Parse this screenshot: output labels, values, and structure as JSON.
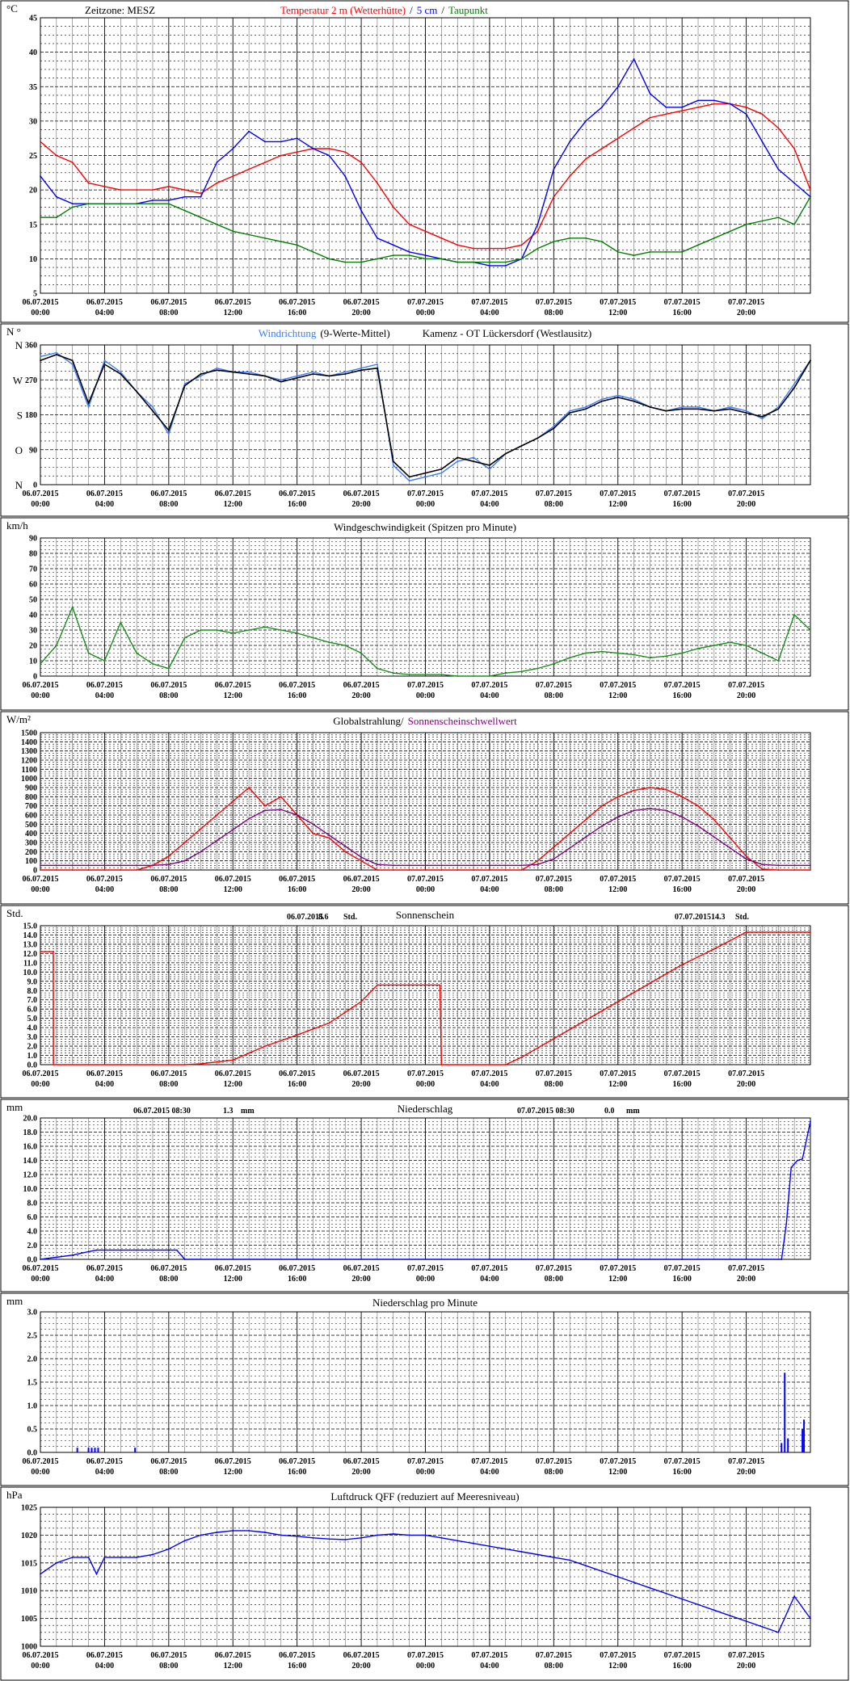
{
  "x_labels": [
    [
      "06.07.2015",
      "00:00"
    ],
    [
      "06.07.2015",
      "04:00"
    ],
    [
      "06.07.2015",
      "08:00"
    ],
    [
      "06.07.2015",
      "12:00"
    ],
    [
      "06.07.2015",
      "16:00"
    ],
    [
      "06.07.2015",
      "20:00"
    ],
    [
      "07.07.2015",
      "00:00"
    ],
    [
      "07.07.2015",
      "04:00"
    ],
    [
      "07.07.2015",
      "08:00"
    ],
    [
      "07.07.2015",
      "12:00"
    ],
    [
      "07.07.2015",
      "16:00"
    ],
    [
      "07.07.2015",
      "20:00"
    ]
  ],
  "colors": {
    "red": "#ff0000",
    "blue": "#0000ff",
    "green": "#008000",
    "lightblue": "#3a7cff",
    "black": "#000000",
    "purple": "#800080",
    "darkgreen": "#1a8f1a"
  },
  "chart_data": [
    {
      "id": "temp",
      "type": "line",
      "unit": "°C",
      "title_parts": [
        {
          "text": "Zeitzone: MESZ",
          "color": "#000000"
        },
        {
          "text": "Temperatur 2 m (Wetterhütte)",
          "color": "#ff0000"
        },
        {
          "text": "/",
          "color": "#000000"
        },
        {
          "text": "5 cm",
          "color": "#0000ff"
        },
        {
          "text": "/",
          "color": "#000000"
        },
        {
          "text": "Taupunkt",
          "color": "#008000"
        }
      ],
      "ylim": [
        5,
        45
      ],
      "yticks": [
        "5",
        "10",
        "15",
        "20",
        "25",
        "30",
        "35",
        "40",
        "45"
      ],
      "x": [
        0,
        1,
        2,
        3,
        4,
        5,
        6,
        7,
        8,
        9,
        10,
        11,
        12,
        13,
        14,
        15,
        16,
        17,
        18,
        19,
        20,
        21,
        22,
        23,
        24,
        25,
        26,
        27,
        28,
        29,
        30,
        31,
        32,
        33,
        34,
        35,
        36,
        37,
        38,
        39,
        40,
        41,
        42,
        43,
        44,
        45,
        46,
        47,
        48
      ],
      "series": [
        {
          "name": "Temperatur 2 m (Wetterhütte)",
          "color": "#ff0000",
          "values": [
            27,
            25,
            24,
            21,
            20.5,
            20,
            20,
            20,
            20.5,
            20,
            19.5,
            21,
            22,
            23,
            24,
            25,
            25.5,
            26,
            26,
            25.5,
            24,
            21,
            17.5,
            15,
            14,
            13,
            12,
            11.5,
            11.5,
            11.5,
            12,
            14,
            19,
            22,
            24.5,
            26,
            27.5,
            29,
            30.5,
            31,
            31.5,
            32,
            32.5,
            32.5,
            32,
            31,
            29,
            26,
            20
          ]
        },
        {
          "name": "5 cm",
          "color": "#0000ff",
          "values": [
            22,
            19,
            18,
            18,
            18,
            18,
            18,
            18.5,
            18.5,
            19,
            19,
            24,
            26,
            28.5,
            27,
            27,
            27.5,
            26,
            25,
            22,
            17,
            13,
            12,
            11,
            10.5,
            10,
            9.5,
            9.5,
            9,
            9,
            10,
            15,
            23,
            27,
            30,
            32,
            35,
            39,
            34,
            32,
            32,
            33,
            33,
            32.5,
            31,
            27,
            23,
            21,
            19
          ]
        },
        {
          "name": "Taupunkt",
          "color": "#008000",
          "values": [
            16,
            16,
            17.5,
            18,
            18,
            18,
            18,
            18,
            18,
            17,
            16,
            15,
            14,
            13.5,
            13,
            12.5,
            12,
            11,
            10,
            9.5,
            9.5,
            10,
            10.5,
            10.5,
            10,
            10,
            9.5,
            9.5,
            9.5,
            9.5,
            10,
            11.5,
            12.5,
            13,
            13,
            12.5,
            11,
            10.5,
            11,
            11,
            11,
            12,
            13,
            14,
            15,
            15.5,
            16,
            15,
            19
          ]
        }
      ]
    },
    {
      "id": "winddir",
      "type": "line",
      "unit": "N °",
      "title_parts": [
        {
          "text": "Windrichtung",
          "color": "#3a7cff"
        },
        {
          "text": "(9-Werte-Mittel)",
          "color": "#000000"
        },
        {
          "text": "Kamenz - OT Lückersdorf (Westlausitz)",
          "color": "#000000"
        }
      ],
      "ylim": [
        0,
        360
      ],
      "yticks": [
        "0",
        "90",
        "180",
        "270",
        "360"
      ],
      "ydir": [
        "N",
        "O",
        "S",
        "W",
        "N"
      ],
      "x": [
        0,
        1,
        2,
        3,
        4,
        5,
        6,
        7,
        8,
        9,
        10,
        11,
        12,
        13,
        14,
        15,
        16,
        17,
        18,
        19,
        20,
        21,
        22,
        23,
        24,
        25,
        26,
        27,
        28,
        29,
        30,
        31,
        32,
        33,
        34,
        35,
        36,
        37,
        38,
        39,
        40,
        41,
        42,
        43,
        44,
        45,
        46,
        47,
        48
      ],
      "series": [
        {
          "name": "Windrichtung",
          "color": "#3a7cff",
          "values": [
            330,
            340,
            310,
            200,
            320,
            290,
            240,
            200,
            130,
            260,
            280,
            300,
            290,
            290,
            280,
            270,
            280,
            290,
            280,
            290,
            300,
            310,
            50,
            10,
            20,
            30,
            60,
            70,
            40,
            80,
            100,
            120,
            150,
            190,
            200,
            220,
            230,
            220,
            200,
            190,
            200,
            200,
            190,
            200,
            190,
            170,
            200,
            260,
            320
          ]
        },
        {
          "name": "9-Werte-Mittel",
          "color": "#000000",
          "values": [
            320,
            335,
            320,
            210,
            310,
            285,
            240,
            190,
            140,
            255,
            285,
            295,
            290,
            285,
            280,
            265,
            275,
            285,
            280,
            285,
            295,
            300,
            60,
            20,
            30,
            40,
            70,
            60,
            50,
            80,
            100,
            120,
            145,
            185,
            195,
            215,
            225,
            215,
            200,
            190,
            195,
            195,
            190,
            195,
            185,
            175,
            195,
            250,
            320
          ]
        }
      ]
    },
    {
      "id": "windspeed",
      "type": "line",
      "unit": "km/h",
      "title_parts": [
        {
          "text": "Windgeschwindigkeit (Spitzen pro Minute)",
          "color": "#000000"
        }
      ],
      "ylim": [
        0,
        90
      ],
      "yticks": [
        "0",
        "10",
        "20",
        "30",
        "40",
        "50",
        "60",
        "70",
        "80",
        "90"
      ],
      "x": [
        0,
        1,
        2,
        3,
        4,
        5,
        6,
        7,
        8,
        9,
        10,
        11,
        12,
        13,
        14,
        15,
        16,
        17,
        18,
        19,
        20,
        21,
        22,
        23,
        24,
        25,
        26,
        27,
        28,
        29,
        30,
        31,
        32,
        33,
        34,
        35,
        36,
        37,
        38,
        39,
        40,
        41,
        42,
        43,
        44,
        45,
        46,
        47,
        48
      ],
      "series": [
        {
          "name": "Windgeschwindigkeit",
          "color": "#1a8f1a",
          "values": [
            8,
            20,
            45,
            15,
            10,
            35,
            15,
            8,
            5,
            25,
            30,
            30,
            28,
            30,
            32,
            30,
            28,
            25,
            22,
            20,
            15,
            5,
            2,
            1,
            1,
            1,
            0,
            0,
            0,
            2,
            3,
            5,
            8,
            12,
            15,
            16,
            15,
            14,
            12,
            13,
            15,
            18,
            20,
            22,
            20,
            15,
            10,
            40,
            30
          ]
        }
      ]
    },
    {
      "id": "radiation",
      "type": "line",
      "unit": "W/m²",
      "title_parts": [
        {
          "text": "Globalstrahlung/",
          "color": "#000000"
        },
        {
          "text": "Sonnenscheinschwellwert",
          "color": "#800080"
        }
      ],
      "ylim": [
        0,
        1500
      ],
      "yticks": [
        "0",
        "100",
        "200",
        "300",
        "400",
        "500",
        "600",
        "700",
        "800",
        "900",
        "1000",
        "1100",
        "1200",
        "1300",
        "1400",
        "1500"
      ],
      "x": [
        0,
        1,
        2,
        3,
        4,
        5,
        6,
        7,
        8,
        9,
        10,
        11,
        12,
        13,
        14,
        15,
        16,
        17,
        18,
        19,
        20,
        21,
        22,
        23,
        24,
        25,
        26,
        27,
        28,
        29,
        30,
        31,
        32,
        33,
        34,
        35,
        36,
        37,
        38,
        39,
        40,
        41,
        42,
        43,
        44,
        45,
        46,
        47,
        48
      ],
      "series": [
        {
          "name": "Globalstrahlung",
          "color": "#ff0000",
          "values": [
            0,
            0,
            0,
            0,
            0,
            0,
            0,
            50,
            150,
            300,
            450,
            600,
            750,
            900,
            700,
            800,
            600,
            400,
            350,
            200,
            100,
            0,
            0,
            0,
            0,
            0,
            0,
            0,
            0,
            0,
            0,
            100,
            250,
            400,
            550,
            700,
            800,
            870,
            900,
            880,
            800,
            700,
            550,
            350,
            150,
            10,
            0,
            0,
            0
          ]
        },
        {
          "name": "Sonnenscheinschwellwert",
          "color": "#800080",
          "values": [
            50,
            50,
            50,
            50,
            50,
            50,
            50,
            50,
            60,
            100,
            200,
            320,
            440,
            560,
            650,
            660,
            600,
            500,
            380,
            260,
            140,
            60,
            50,
            50,
            50,
            50,
            50,
            50,
            50,
            50,
            50,
            60,
            120,
            240,
            360,
            480,
            580,
            650,
            670,
            650,
            580,
            480,
            360,
            240,
            120,
            60,
            50,
            50,
            50
          ]
        }
      ]
    },
    {
      "id": "sunshine",
      "type": "line",
      "unit": "Std.",
      "title_parts": [
        {
          "text": "Sonnenschein",
          "color": "#000000"
        }
      ],
      "stats": [
        {
          "date": "06.07.2015",
          "value": "8.6",
          "unit": "Std."
        },
        {
          "date": "07.07.2015",
          "value": "14.3",
          "unit": "Std."
        }
      ],
      "ylim": [
        0,
        15
      ],
      "yticks": [
        "0.0",
        "1.0",
        "2.0",
        "3.0",
        "4.0",
        "5.0",
        "6.0",
        "7.0",
        "8.0",
        "9.0",
        "10.0",
        "11.0",
        "12.0",
        "13.0",
        "14.0",
        "15.0"
      ],
      "x": [
        0,
        0.8,
        0.81,
        9,
        10,
        12,
        14,
        16,
        18,
        20,
        21,
        23,
        24,
        24.9,
        25,
        29,
        30,
        32,
        34,
        36,
        38,
        40,
        42,
        44,
        46,
        48
      ],
      "series": [
        {
          "name": "Sonnenschein",
          "color": "#ff0000",
          "values": [
            12.2,
            12.2,
            0,
            0,
            0.1,
            0.5,
            2.0,
            3.2,
            4.5,
            6.8,
            8.6,
            8.6,
            8.6,
            8.6,
            0,
            0,
            0.8,
            2.8,
            4.8,
            6.8,
            8.8,
            10.8,
            12.5,
            14.3,
            14.3,
            14.3
          ]
        }
      ]
    },
    {
      "id": "precip",
      "type": "line",
      "unit": "mm",
      "title_parts": [
        {
          "text": "Niederschlag",
          "color": "#000000"
        }
      ],
      "stats": [
        {
          "date": "06.07.2015 08:30",
          "value": "1.3",
          "unit": "mm"
        },
        {
          "date": "07.07.2015 08:30",
          "value": "0.0",
          "unit": "mm"
        }
      ],
      "ylim": [
        0,
        20
      ],
      "yticks": [
        "0.0",
        "2.0",
        "4.0",
        "6.0",
        "8.0",
        "10.0",
        "12.0",
        "14.0",
        "16.0",
        "18.0",
        "20.0"
      ],
      "x": [
        0,
        2,
        3,
        3.5,
        8.5,
        9,
        40,
        46.2,
        46.5,
        46.8,
        47.2,
        47.5,
        48
      ],
      "series": [
        {
          "name": "Niederschlag",
          "color": "#0000ff",
          "values": [
            0,
            0.6,
            1.1,
            1.3,
            1.3,
            0,
            0,
            0,
            5,
            13,
            14,
            14.2,
            19.5
          ]
        }
      ]
    },
    {
      "id": "precipmin",
      "type": "bar",
      "unit": "mm",
      "title_parts": [
        {
          "text": "Niederschlag pro Minute",
          "color": "#000000"
        }
      ],
      "ylim": [
        0,
        3
      ],
      "yticks": [
        "0.0",
        "0.5",
        "1.0",
        "1.5",
        "2.0",
        "2.5",
        "3.0"
      ],
      "x": [
        2.3,
        3.0,
        3.2,
        3.4,
        3.6,
        5.9,
        46.2,
        46.4,
        46.6,
        47.5,
        47.6
      ],
      "series": [
        {
          "name": "Niederschlag pro Minute",
          "color": "#0000ff",
          "values": [
            0.1,
            0.1,
            0.1,
            0.1,
            0.1,
            0.1,
            0.2,
            1.7,
            0.3,
            0.5,
            0.7
          ]
        }
      ]
    },
    {
      "id": "pressure",
      "type": "line",
      "unit": "hPa",
      "title_parts": [
        {
          "text": "Luftdruck QFF (reduziert auf Meeresniveau)",
          "color": "#000000"
        }
      ],
      "ylim": [
        1000,
        1025
      ],
      "yticks": [
        "1000",
        "1005",
        "1010",
        "1015",
        "1020",
        "1025"
      ],
      "x": [
        0,
        1,
        2,
        3,
        3.5,
        4,
        5,
        6,
        7,
        8,
        9,
        10,
        11,
        12,
        13,
        14,
        15,
        16,
        17,
        18,
        19,
        20,
        21,
        22,
        23,
        24,
        25,
        26,
        27,
        28,
        29,
        30,
        31,
        32,
        33,
        34,
        35,
        36,
        37,
        38,
        39,
        40,
        41,
        42,
        43,
        44,
        45,
        46,
        47,
        48
      ],
      "series": [
        {
          "name": "Luftdruck QFF",
          "color": "#0000ff",
          "values": [
            1013,
            1015,
            1016,
            1016,
            1013,
            1016,
            1016,
            1016,
            1016.5,
            1017.5,
            1019,
            1020,
            1020.5,
            1020.8,
            1020.8,
            1020.5,
            1020,
            1019.8,
            1019.5,
            1019.3,
            1019.2,
            1019.5,
            1020,
            1020.2,
            1020,
            1020,
            1019.5,
            1019,
            1018.5,
            1018,
            1017.5,
            1017,
            1016.5,
            1016,
            1015.5,
            1014.5,
            1013.5,
            1012.5,
            1011.5,
            1010.5,
            1009.5,
            1008.5,
            1007.5,
            1006.5,
            1005.5,
            1004.5,
            1003.5,
            1002.5,
            1009,
            1005
          ]
        }
      ]
    }
  ]
}
